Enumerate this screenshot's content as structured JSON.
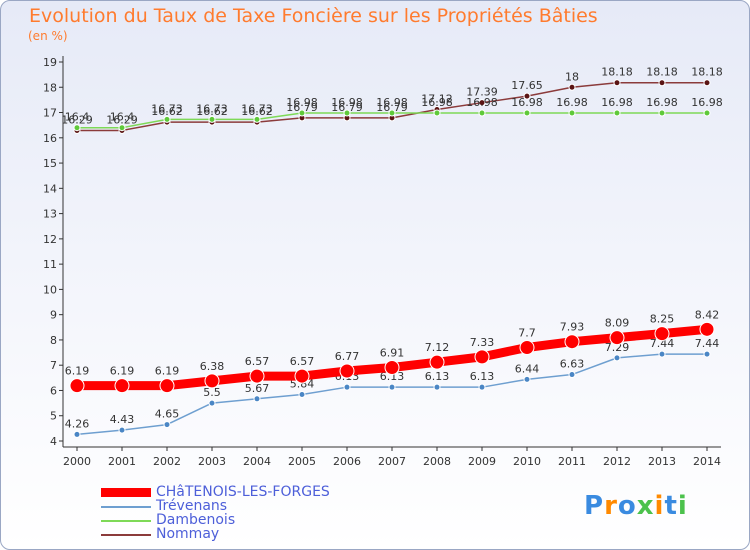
{
  "title": "Evolution du Taux de Taxe Foncière sur les Propriétés Bâties",
  "unit": "(en %)",
  "logo": [
    "P",
    "r",
    "o",
    "x",
    "i",
    "t",
    "i"
  ],
  "logo_colors": [
    "#3a8be0",
    "#ff8a00",
    "#3a8be0",
    "#4cc24c",
    "#ff8a00",
    "#3a8be0",
    "#4cc24c"
  ],
  "chart_data": {
    "type": "line",
    "x": [
      2000,
      2001,
      2002,
      2003,
      2004,
      2005,
      2006,
      2007,
      2008,
      2009,
      2010,
      2011,
      2012,
      2013,
      2014
    ],
    "ylim": [
      4,
      19
    ],
    "yticks": [
      4,
      5,
      6,
      7,
      8,
      9,
      10,
      11,
      12,
      13,
      14,
      15,
      16,
      17,
      18,
      19
    ],
    "grid": false,
    "legend": "bottom-left",
    "series": [
      {
        "name": "Nommay",
        "color": "#8b3b3b",
        "marker": "#5a1414",
        "width": 1.5,
        "markerR": 3,
        "values": [
          16.29,
          16.29,
          16.62,
          16.62,
          16.62,
          16.79,
          16.79,
          16.79,
          17.12,
          17.39,
          17.65,
          18,
          18.18,
          18.18,
          18.18
        ],
        "labels": [
          "16.29",
          "16.29",
          "16.62",
          "16.62",
          "16.62",
          "16.79",
          "16.79",
          "16.79",
          "17.12",
          "17.39",
          "17.65",
          "18",
          "18.18",
          "18.18",
          "18.18"
        ]
      },
      {
        "name": "Dambenois",
        "color": "#7ed957",
        "marker": "#5fc93a",
        "width": 1.5,
        "markerR": 3,
        "values": [
          16.4,
          16.4,
          16.73,
          16.73,
          16.73,
          16.98,
          16.98,
          16.98,
          16.98,
          16.98,
          16.98,
          16.98,
          16.98,
          16.98,
          16.98
        ],
        "labels": [
          "16.4",
          "16.4",
          "16.73",
          "16.73",
          "16.73",
          "16.98",
          "16.98",
          "16.98",
          "16.98",
          "16.98",
          "16.98",
          "16.98",
          "16.98",
          "16.98",
          "16.98"
        ]
      },
      {
        "name": "Trévenans",
        "color": "#6e9fd0",
        "marker": "#4a86c5",
        "width": 1.5,
        "markerR": 3,
        "values": [
          4.26,
          4.43,
          4.65,
          5.5,
          5.67,
          5.84,
          6.13,
          6.13,
          6.13,
          6.13,
          6.44,
          6.63,
          7.29,
          7.44,
          7.44
        ],
        "labels": [
          "4.26",
          "4.43",
          "4.65",
          "5.5",
          "5.67",
          "5.84",
          "6.13",
          "6.13",
          "6.13",
          "6.13",
          "6.44",
          "6.63",
          "7.29",
          "7.44",
          "7.44"
        ]
      },
      {
        "name": "CHâTENOIS-LES-FORGES",
        "color": "#ff0000",
        "marker": "#ff0000",
        "width": 9,
        "markerR": 7,
        "values": [
          6.19,
          6.19,
          6.19,
          6.38,
          6.57,
          6.57,
          6.77,
          6.91,
          7.12,
          7.33,
          7.7,
          7.93,
          8.09,
          8.25,
          8.42
        ],
        "labels": [
          "6.19",
          "6.19",
          "6.19",
          "6.38",
          "6.57",
          "6.57",
          "6.77",
          "6.91",
          "7.12",
          "7.33",
          "7.7",
          "7.93",
          "8.09",
          "8.25",
          "8.42"
        ]
      }
    ],
    "legend_order": [
      "CHâTENOIS-LES-FORGES",
      "Trévenans",
      "Dambenois",
      "Nommay"
    ]
  }
}
